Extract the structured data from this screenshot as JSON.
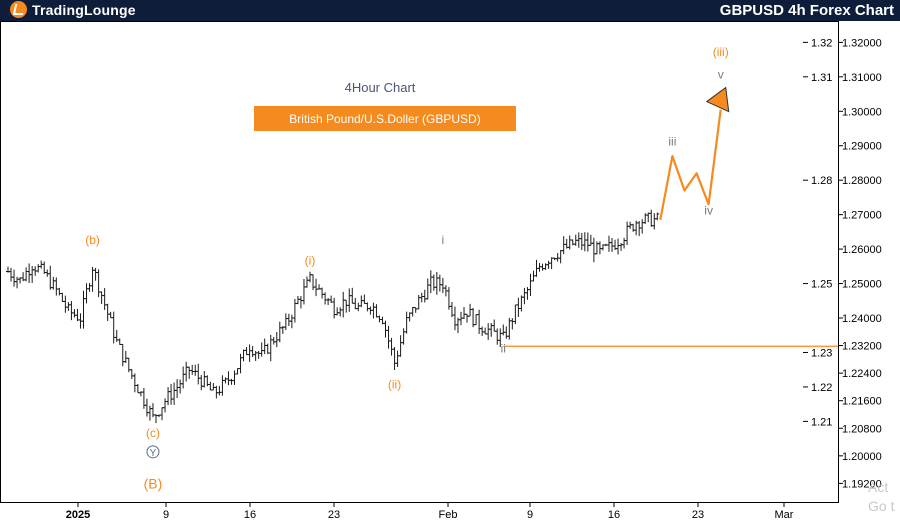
{
  "header": {
    "logo_main": "TradingLounge",
    "title": "GBPUSD 4h Forex Chart"
  },
  "chart_data": {
    "type": "candlestick",
    "title": "4Hour Chart",
    "subtitle": "British Pound/U.S.Doller (GBPUSD)",
    "y_ticks": [
      "1.32000",
      "1.31000",
      "1.30000",
      "1.29000",
      "1.28000",
      "1.27000",
      "1.26000",
      "1.25000",
      "1.24000",
      "1.23200",
      "1.22400",
      "1.21600",
      "1.20800",
      "1.20000",
      "1.19200"
    ],
    "y_ticks_inner": [
      "1.32",
      "1.31",
      "1.28",
      "1.25",
      "1.23",
      "1.22",
      "1.21"
    ],
    "x_ticks": [
      "2025",
      "9",
      "16",
      "23",
      "Feb",
      "9",
      "16",
      "23",
      "Mar"
    ],
    "ylim": [
      1.1866,
      1.3262
    ],
    "support_level": 1.2318,
    "price_path": [
      [
        "2024-12-31",
        1.2535
      ],
      [
        "2025-01-01",
        1.251
      ],
      [
        "2025-01-02",
        1.2555
      ],
      [
        "2025-01-03",
        1.253
      ],
      [
        "2025-01-04",
        1.248
      ],
      [
        "2025-01-05",
        1.242
      ],
      [
        "2025-01-06",
        1.24
      ],
      [
        "2025-01-07",
        1.255
      ],
      [
        "2025-01-08",
        1.244
      ],
      [
        "2025-01-09",
        1.233
      ],
      [
        "2025-01-10",
        1.225
      ],
      [
        "2025-01-11",
        1.218
      ],
      [
        "2025-01-12",
        1.211
      ],
      [
        "2025-01-13",
        1.216
      ],
      [
        "2025-01-14",
        1.22
      ],
      [
        "2025-01-15",
        1.225
      ],
      [
        "2025-01-16",
        1.222
      ],
      [
        "2025-01-17",
        1.218
      ],
      [
        "2025-01-18",
        1.221
      ],
      [
        "2025-01-19",
        1.226
      ],
      [
        "2025-01-20",
        1.232
      ],
      [
        "2025-01-21",
        1.229
      ],
      [
        "2025-01-22",
        1.234
      ],
      [
        "2025-01-23",
        1.238
      ],
      [
        "2025-01-24",
        1.245
      ],
      [
        "2025-01-25",
        1.251
      ],
      [
        "2025-01-26",
        1.247
      ],
      [
        "2025-01-27",
        1.243
      ],
      [
        "2025-01-28",
        1.245
      ],
      [
        "2025-01-29",
        1.243
      ],
      [
        "2025-01-30",
        1.244
      ],
      [
        "2025-01-31",
        1.24
      ],
      [
        "2025-02-01",
        1.227
      ],
      [
        "2025-02-02",
        1.239
      ],
      [
        "2025-02-03",
        1.245
      ],
      [
        "2025-02-04",
        1.25
      ],
      [
        "2025-02-05",
        1.25
      ],
      [
        "2025-02-06",
        1.24
      ],
      [
        "2025-02-07",
        1.242
      ],
      [
        "2025-02-08",
        1.238
      ],
      [
        "2025-02-09",
        1.236
      ],
      [
        "2025-02-10",
        1.234
      ],
      [
        "2025-02-11",
        1.242
      ],
      [
        "2025-02-12",
        1.248
      ],
      [
        "2025-02-13",
        1.255
      ],
      [
        "2025-02-14",
        1.258
      ],
      [
        "2025-02-15",
        1.26
      ],
      [
        "2025-02-16",
        1.262
      ],
      [
        "2025-02-17",
        1.2615
      ],
      [
        "2025-02-18",
        1.259
      ],
      [
        "2025-02-19",
        1.261
      ],
      [
        "2025-02-20",
        1.264
      ],
      [
        "2025-02-21",
        1.268
      ],
      [
        "2025-02-22",
        1.2685
      ],
      [
        "2025-02-23",
        1.2685
      ]
    ],
    "projection": [
      [
        "2025-02-23",
        1.2685
      ],
      [
        "2025-02-24",
        1.287
      ],
      [
        "2025-02-25",
        1.277
      ],
      [
        "2025-02-26",
        1.282
      ],
      [
        "2025-02-27",
        1.273
      ],
      [
        "2025-02-28",
        1.3005
      ]
    ],
    "wave_labels": [
      {
        "text": "(b)",
        "date": "2025-01-07",
        "price": 1.2615,
        "color": "#f58a1f"
      },
      {
        "text": "(c)",
        "date": "2025-01-12",
        "price": 1.2055,
        "color": "#f58a1f"
      },
      {
        "text": "Y",
        "date": "2025-01-12",
        "price": 1.2,
        "color": "#5a6791"
      },
      {
        "text": "(B)",
        "date": "2025-01-12",
        "price": 1.1905,
        "color": "#f58a1f"
      },
      {
        "text": "(i)",
        "date": "2025-01-25",
        "price": 1.2555,
        "color": "#f58a1f"
      },
      {
        "text": "(ii)",
        "date": "2025-02-01",
        "price": 1.2195,
        "color": "#f58a1f"
      },
      {
        "text": "i",
        "date": "2025-02-05",
        "price": 1.2615,
        "color": "#7a7a7a"
      },
      {
        "text": "ii",
        "date": "2025-02-10",
        "price": 1.23,
        "color": "#7a7a7a"
      },
      {
        "text": "iii",
        "date": "2025-02-24",
        "price": 1.29,
        "color": "#7a7a7a"
      },
      {
        "text": "iv",
        "date": "2025-02-27",
        "price": 1.27,
        "color": "#7a7a7a"
      },
      {
        "text": "v",
        "date": "2025-02-28",
        "price": 1.3095,
        "color": "#7a7a7a"
      },
      {
        "text": "(iii)",
        "date": "2025-02-28",
        "price": 1.316,
        "color": "#f58a1f"
      }
    ],
    "colors": {
      "accent": "#f58a1f",
      "bars": "#1a1a1a",
      "label_blue": "#5a6791",
      "label_grey": "#7a7a7a",
      "header": "#0e1e3a"
    }
  },
  "watermark": {
    "line1": "Act",
    "line2": "Go t"
  }
}
